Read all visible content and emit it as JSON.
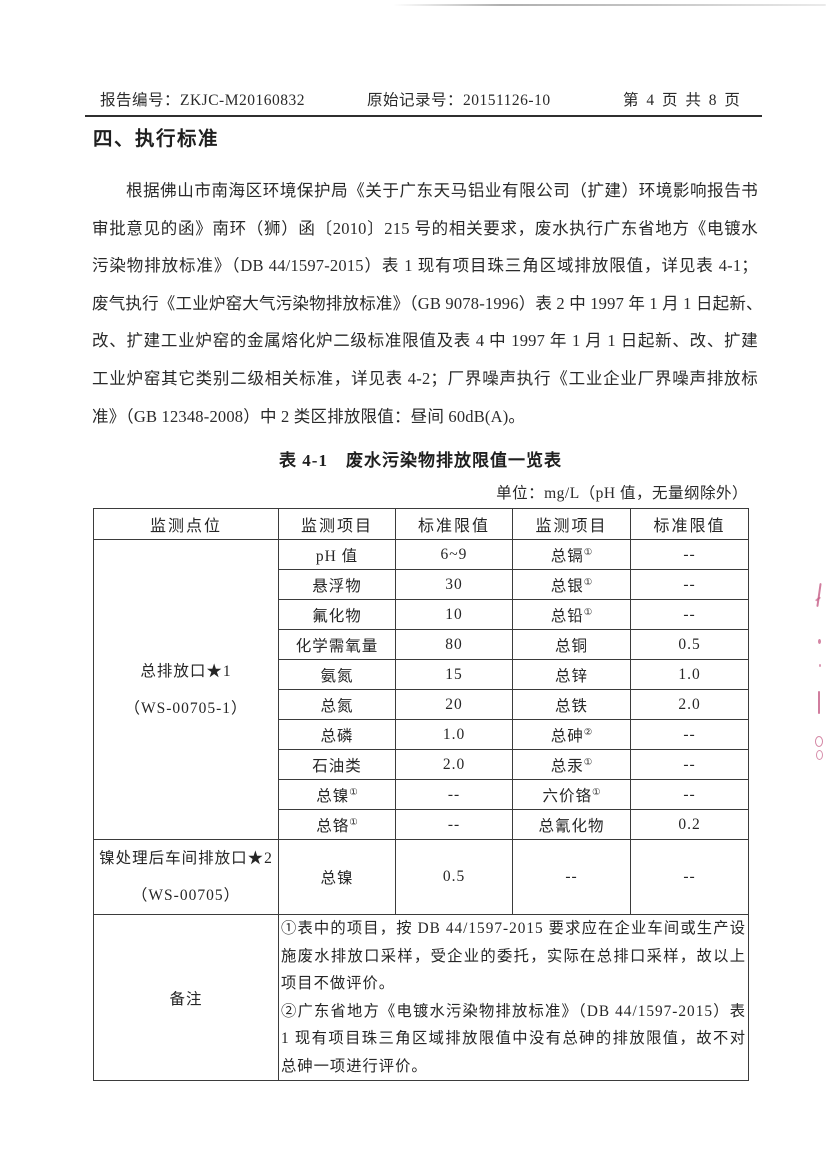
{
  "header": {
    "report_no": "报告编号：ZKJC-M20160832",
    "record_no": "原始记录号：20151126-10",
    "page_indicator": "第 4 页 共 8 页"
  },
  "section_title": "四、执行标准",
  "paragraph_lines": [
    "根据佛山市南海区环境保护局《关于广东天马铝业有限公司（扩建）环境影响报告书",
    "审批意见的函》南环（狮）函〔2010〕215 号的相关要求，废水执行广东省地方《电镀水",
    "污染物排放标准》（DB 44/1597-2015）表 1 现有项目珠三角区域排放限值，详见表 4-1；",
    "废气执行《工业炉窑大气污染物排放标准》（GB 9078-1996）表 2 中 1997 年 1 月 1 日起新、",
    "改、扩建工业炉窑的金属熔化炉二级标准限值及表 4 中 1997 年 1 月 1 日起新、改、扩建",
    "工业炉窑其它类别二级相关标准，详见表 4-2；厂界噪声执行《工业企业厂界噪声排放标",
    "准》（GB 12348-2008）中 2 类区排放限值：昼间 60dB(A)。"
  ],
  "table": {
    "title": "表 4-1　废水污染物排放限值一览表",
    "unit_note": "单位：mg/L（pH 值，无量纲除外）",
    "columns": [
      "监测点位",
      "监测项目",
      "标准限值",
      "监测项目",
      "标准限值"
    ],
    "sections": [
      {
        "point_lines": [
          "总排放口★1",
          "（WS-00705-1）"
        ],
        "rows": [
          [
            "pH 值",
            "6~9",
            "总镉①",
            "--"
          ],
          [
            "悬浮物",
            "30",
            "总银①",
            "--"
          ],
          [
            "氟化物",
            "10",
            "总铅①",
            "--"
          ],
          [
            "化学需氧量",
            "80",
            "总铜",
            "0.5"
          ],
          [
            "氨氮",
            "15",
            "总锌",
            "1.0"
          ],
          [
            "总氮",
            "20",
            "总铁",
            "2.0"
          ],
          [
            "总磷",
            "1.0",
            "总砷②",
            "--"
          ],
          [
            "石油类",
            "2.0",
            "总汞①",
            "--"
          ],
          [
            "总镍①",
            "--",
            "六价铬①",
            "--"
          ],
          [
            "总铬①",
            "--",
            "总氰化物",
            "0.2"
          ]
        ]
      },
      {
        "point_lines": [
          "镍处理后车间排放口★2",
          "（WS-00705）"
        ],
        "rows": [
          [
            "总镍",
            "0.5",
            "--",
            "--"
          ]
        ]
      }
    ],
    "remark_label": "备注",
    "remark_notes": [
      "①表中的项目，按 DB 44/1597-2015 要求应在企业车间或生产设施废水排放口采样，受企业的委托，实际在总排口采样，故以上项目不做评价。",
      "②广东省地方《电镀水污染物排放标准》（DB 44/1597-2015）表 1 现有项目珠三角区域排放限值中没有总砷的排放限值，故不对总砷一项进行评价。"
    ]
  },
  "colors": {
    "text": "#262626",
    "table_border": "#3b3b3b",
    "margin_mark_red": "#c2527e"
  }
}
